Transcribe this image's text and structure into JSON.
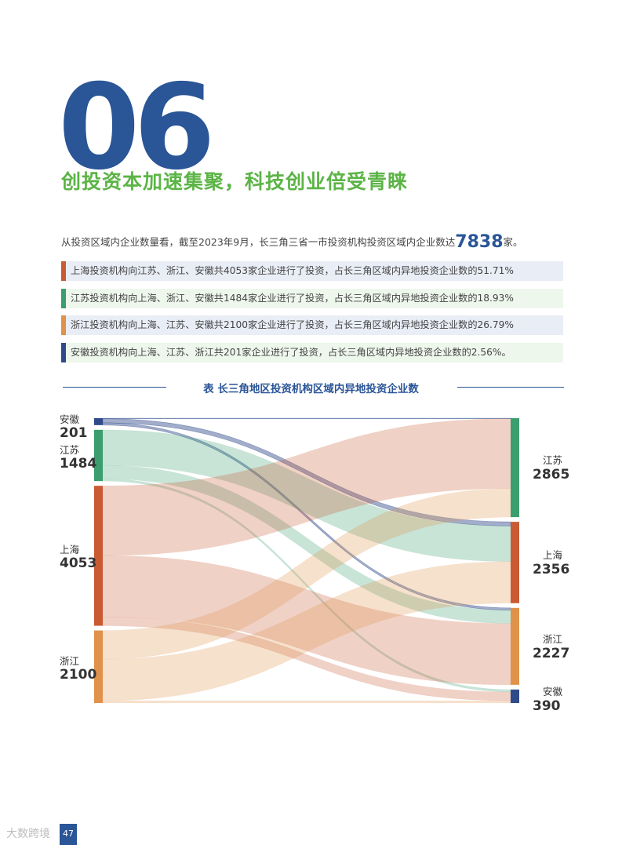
{
  "section": {
    "number": "06",
    "headline": "创投资本加速集聚，科技创业倍受青睐"
  },
  "intro": {
    "prefix": "从投资区域内企业数量看，截至2023年9月，长三角三省一市投资机构投资区域内企业数达",
    "highlight": "7838",
    "suffix": "家。"
  },
  "rows": [
    {
      "text": "上海投资机构向江苏、浙江、安徽共4053家企业进行了投资，占长三角区域内异地投资企业数的51.71%",
      "color": "#c95a34",
      "bg": "#e9edf6"
    },
    {
      "text": "江苏投资机构向上海、浙江、安徽共1484家企业进行了投资，占长三角区域内异地投资企业数的18.93%",
      "color": "#3a9e6e",
      "bg": "#eef7ec"
    },
    {
      "text": "浙江投资机构向上海、江苏、安徽共2100家企业进行了投资，占长三角区域内异地投资企业数的26.79%",
      "color": "#e0924a",
      "bg": "#e9edf6"
    },
    {
      "text": "安徽投资机构向上海、江苏、浙江共201家企业进行了投资，占长三角区域内异地投资企业数的2.56%。",
      "color": "#2f4a8a",
      "bg": "#eef7ec"
    }
  ],
  "caption": "表 长三角地区投资机构区域内异地投资企业数",
  "chart_data": {
    "type": "sankey",
    "title": "长三角地区投资机构区域内异地投资企业数",
    "sources": [
      {
        "name": "安徽",
        "value": 201,
        "color": "#2f4a8a"
      },
      {
        "name": "江苏",
        "value": 1484,
        "color": "#3a9e6e"
      },
      {
        "name": "上海",
        "value": 4053,
        "color": "#c95a34"
      },
      {
        "name": "浙江",
        "value": 2100,
        "color": "#e0924a"
      }
    ],
    "targets": [
      {
        "name": "江苏",
        "value": 2865,
        "color": "#3a9e6e"
      },
      {
        "name": "上海",
        "value": 2356,
        "color": "#c95a34"
      },
      {
        "name": "浙江",
        "value": 2227,
        "color": "#e0924a"
      },
      {
        "name": "安徽",
        "value": 390,
        "color": "#2f4a8a"
      }
    ],
    "links": [
      {
        "source": "安徽",
        "target": "江苏",
        "value": 16
      },
      {
        "source": "安徽",
        "target": "上海",
        "value": 120
      },
      {
        "source": "安徽",
        "target": "浙江",
        "value": 65
      },
      {
        "source": "江苏",
        "target": "上海",
        "value": 1030
      },
      {
        "source": "江苏",
        "target": "浙江",
        "value": 384
      },
      {
        "source": "江苏",
        "target": "安徽",
        "value": 70
      },
      {
        "source": "上海",
        "target": "江苏",
        "value": 2020
      },
      {
        "source": "上海",
        "target": "浙江",
        "value": 1778
      },
      {
        "source": "上海",
        "target": "安徽",
        "value": 255
      },
      {
        "source": "浙江",
        "target": "江苏",
        "value": 829
      },
      {
        "source": "浙江",
        "target": "上海",
        "value": 1206
      },
      {
        "source": "浙江",
        "target": "安徽",
        "value": 65
      }
    ]
  },
  "footer": {
    "page": "47",
    "watermark": "大数跨境"
  }
}
